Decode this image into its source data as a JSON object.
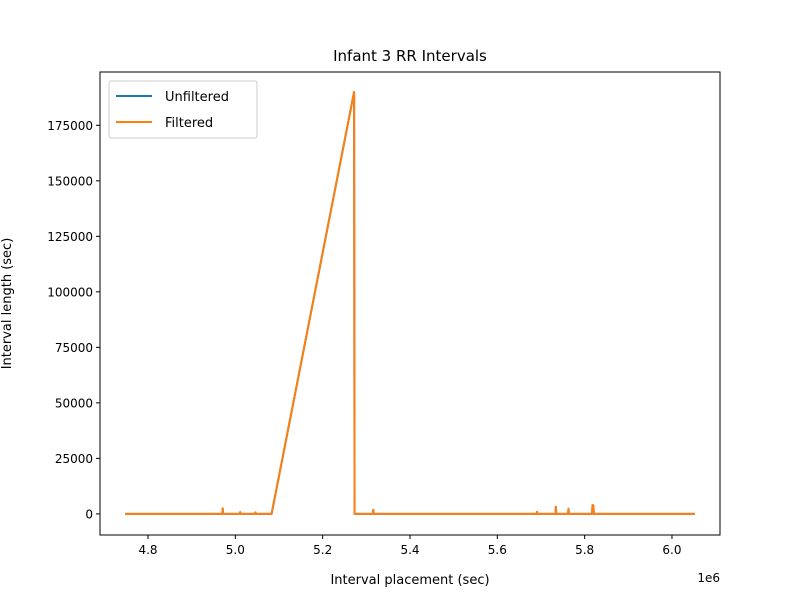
{
  "chart_data": {
    "type": "line",
    "title": "Infant 3 RR Intervals",
    "xlabel": "Interval placement (sec)",
    "ylabel": "Interval length (sec)",
    "x_offset_label": "1e6",
    "xlim": [
      4.69,
      6.11
    ],
    "ylim": [
      -9500,
      199000
    ],
    "x_ticks": [
      4.8,
      5.0,
      5.2,
      5.4,
      5.6,
      5.8,
      6.0
    ],
    "x_tick_labels": [
      "4.8",
      "5.0",
      "5.2",
      "5.4",
      "5.6",
      "5.8",
      "6.0"
    ],
    "y_ticks": [
      0,
      25000,
      50000,
      75000,
      100000,
      125000,
      150000,
      175000
    ],
    "y_tick_labels": [
      "0",
      "25000",
      "50000",
      "75000",
      "100000",
      "125000",
      "150000",
      "175000"
    ],
    "grid": false,
    "legend_position": "top-left",
    "series": [
      {
        "name": "Unfiltered",
        "color": "#1f77b4",
        "x": [
          4.75,
          4.97,
          4.971,
          4.972,
          4.973,
          5.01,
          5.011,
          5.012,
          5.045,
          5.046,
          5.047,
          5.083,
          5.272,
          5.273,
          5.274,
          5.315,
          5.316,
          5.317,
          5.69,
          5.691,
          5.692,
          5.733,
          5.734,
          5.735,
          5.762,
          5.763,
          5.764,
          5.817,
          5.818,
          5.819,
          5.82,
          5.821,
          6.05
        ],
        "y": [
          0,
          0,
          2500,
          0,
          0,
          0,
          800,
          0,
          0,
          700,
          0,
          0,
          190000,
          0,
          0,
          0,
          1800,
          0,
          0,
          900,
          0,
          0,
          3200,
          0,
          0,
          2300,
          0,
          0,
          4000,
          1500,
          3800,
          0,
          0
        ]
      },
      {
        "name": "Filtered",
        "color": "#ff7f0e",
        "x": [
          4.75,
          4.97,
          4.971,
          4.972,
          4.973,
          5.01,
          5.011,
          5.012,
          5.045,
          5.046,
          5.047,
          5.083,
          5.272,
          5.273,
          5.274,
          5.315,
          5.316,
          5.317,
          5.69,
          5.691,
          5.692,
          5.733,
          5.734,
          5.735,
          5.762,
          5.763,
          5.764,
          5.817,
          5.818,
          5.819,
          5.82,
          5.821,
          6.05
        ],
        "y": [
          0,
          0,
          2500,
          0,
          0,
          0,
          800,
          0,
          0,
          700,
          0,
          0,
          190000,
          0,
          0,
          0,
          1800,
          0,
          0,
          900,
          0,
          0,
          3200,
          0,
          0,
          2300,
          0,
          0,
          4000,
          1500,
          3800,
          0,
          0
        ]
      }
    ]
  }
}
